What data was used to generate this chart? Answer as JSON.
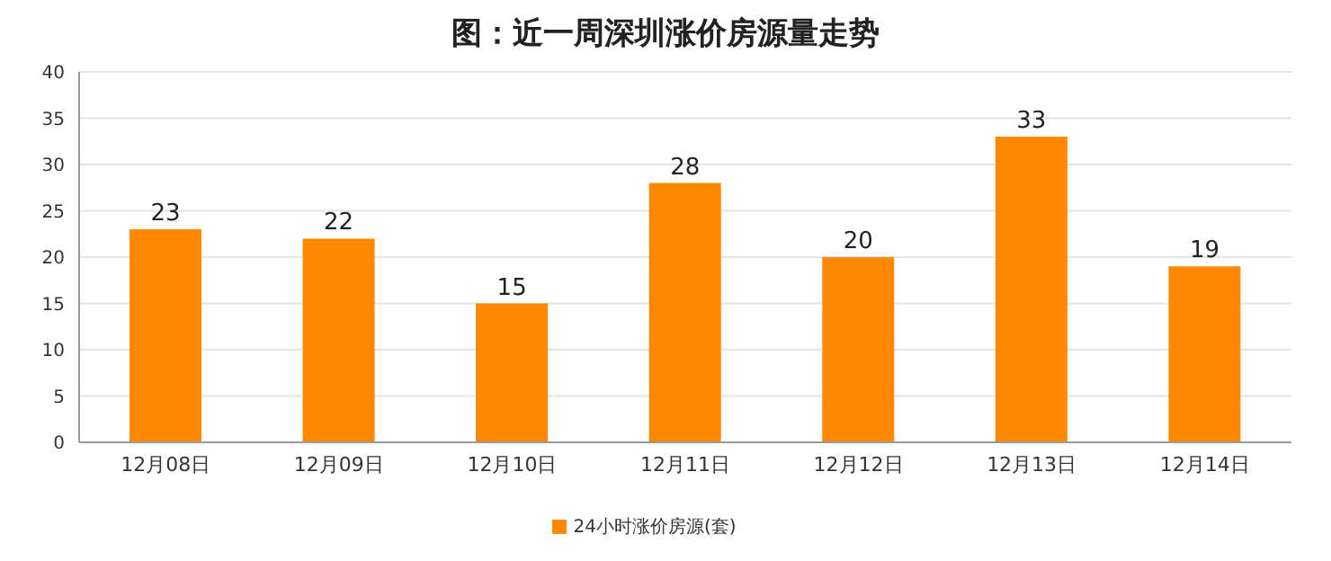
{
  "chart_data": {
    "type": "bar",
    "title": "图：近一周深圳涨价房源量走势",
    "categories": [
      "12月08日",
      "12月09日",
      "12月10日",
      "12月11日",
      "12月12日",
      "12月13日",
      "12月14日"
    ],
    "series": [
      {
        "name": "24小时涨价房源(套)",
        "color": "#ff8800",
        "values": [
          23,
          22,
          15,
          28,
          20,
          33,
          19
        ]
      }
    ],
    "ylim": [
      0,
      40
    ],
    "yticks": [
      0,
      5,
      10,
      15,
      20,
      25,
      30,
      35,
      40
    ],
    "grid": "y",
    "legend": "bottom",
    "data_labels": true
  }
}
